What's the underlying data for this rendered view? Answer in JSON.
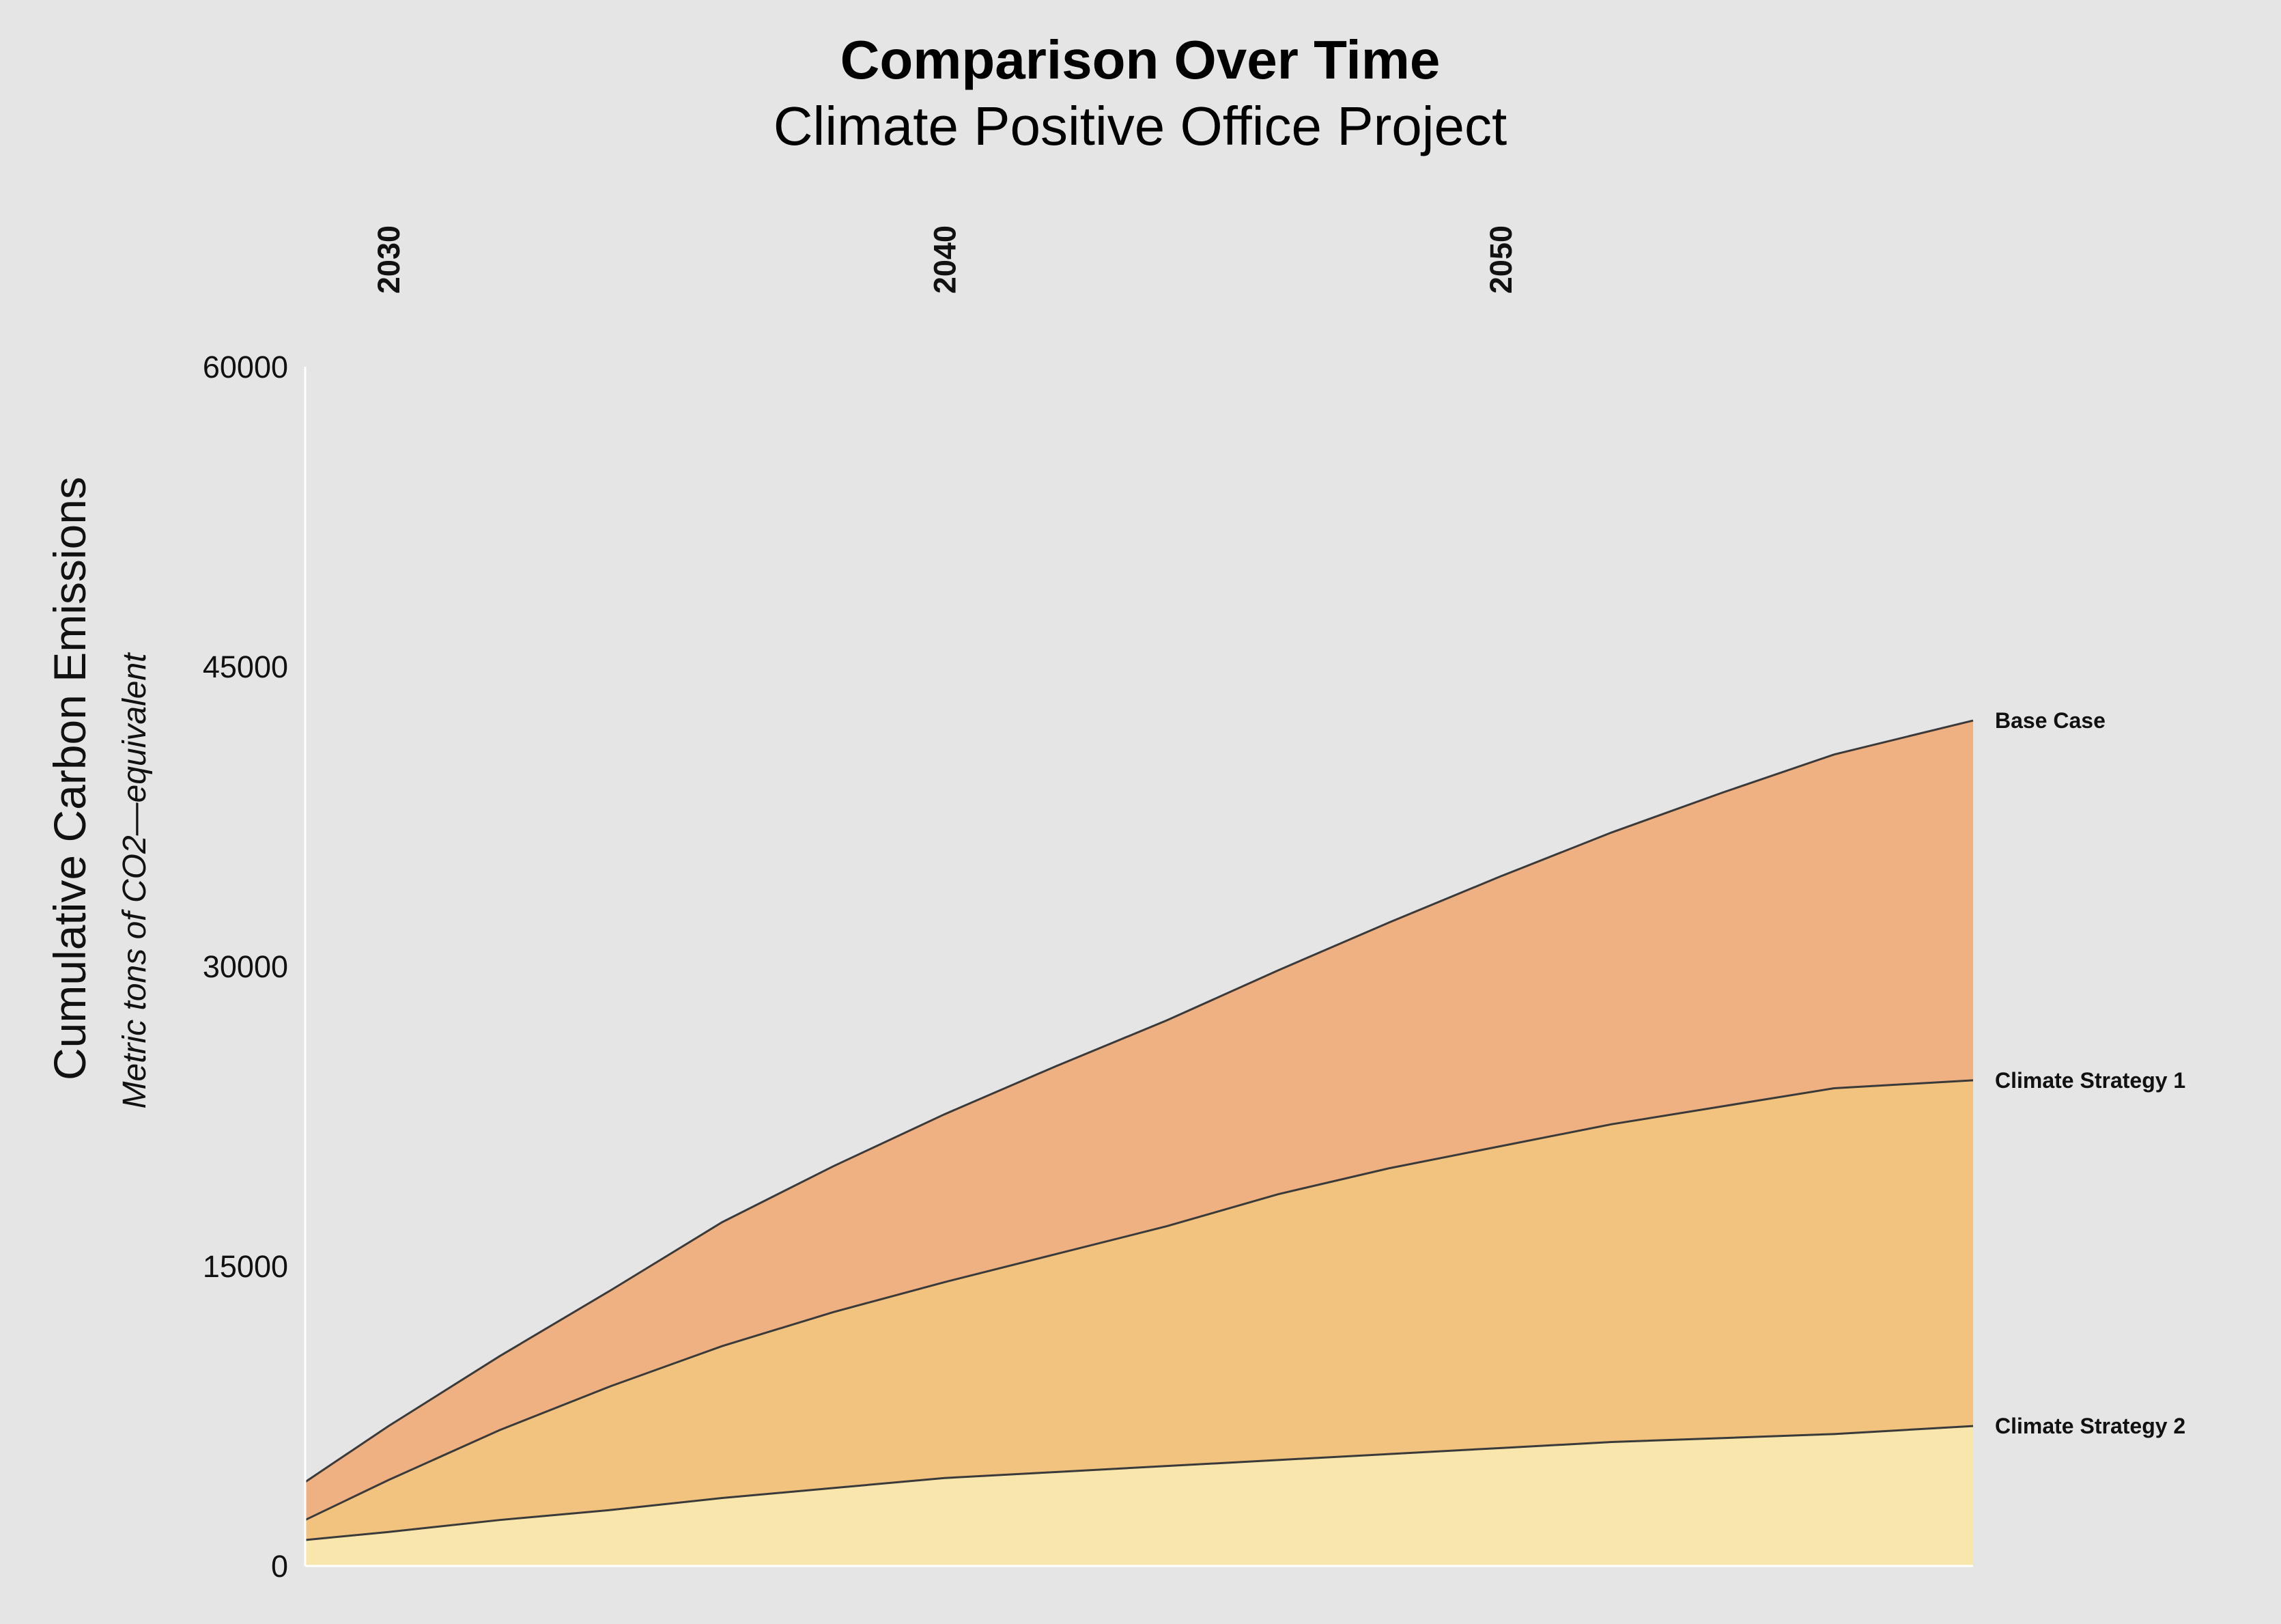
{
  "chart_data": {
    "type": "area",
    "title": "Comparison Over Time",
    "subtitle": "Climate Positive Office Project",
    "ylabel": "Cumulative Carbon Emissions",
    "ylabel_sub": "Metric tons of CO2—equivalent",
    "xlabel": "",
    "ylim": [
      0,
      60000
    ],
    "xlim": [
      2028.5,
      2058.5
    ],
    "y_ticks": [
      "0",
      "15000",
      "30000",
      "45000",
      "60000"
    ],
    "x_ticks": [
      "2030",
      "2040",
      "2050"
    ],
    "x_tick_position": "top",
    "grid": false,
    "stacked": false,
    "x": [
      2028.5,
      2030,
      2032,
      2034,
      2036,
      2038,
      2040,
      2042,
      2044,
      2046,
      2048,
      2050,
      2052,
      2054,
      2056,
      2058.5
    ],
    "series": [
      {
        "name": "Base Case",
        "color": "#efb182",
        "values": [
          4200,
          7000,
          10500,
          13800,
          17200,
          20000,
          22600,
          25000,
          27300,
          29800,
          32200,
          34500,
          36700,
          38700,
          40600,
          42300
        ]
      },
      {
        "name": "Climate Strategy 1",
        "color": "#f2c37e",
        "values": [
          2300,
          4300,
          6800,
          9000,
          11000,
          12700,
          14200,
          15600,
          17000,
          18600,
          19900,
          21000,
          22100,
          23000,
          23900,
          24300
        ]
      },
      {
        "name": "Climate Strategy 2",
        "color": "#f9e6ad",
        "values": [
          1300,
          1700,
          2300,
          2800,
          3400,
          3900,
          4400,
          4700,
          5000,
          5300,
          5600,
          5900,
          6200,
          6400,
          6600,
          7000
        ]
      }
    ]
  }
}
